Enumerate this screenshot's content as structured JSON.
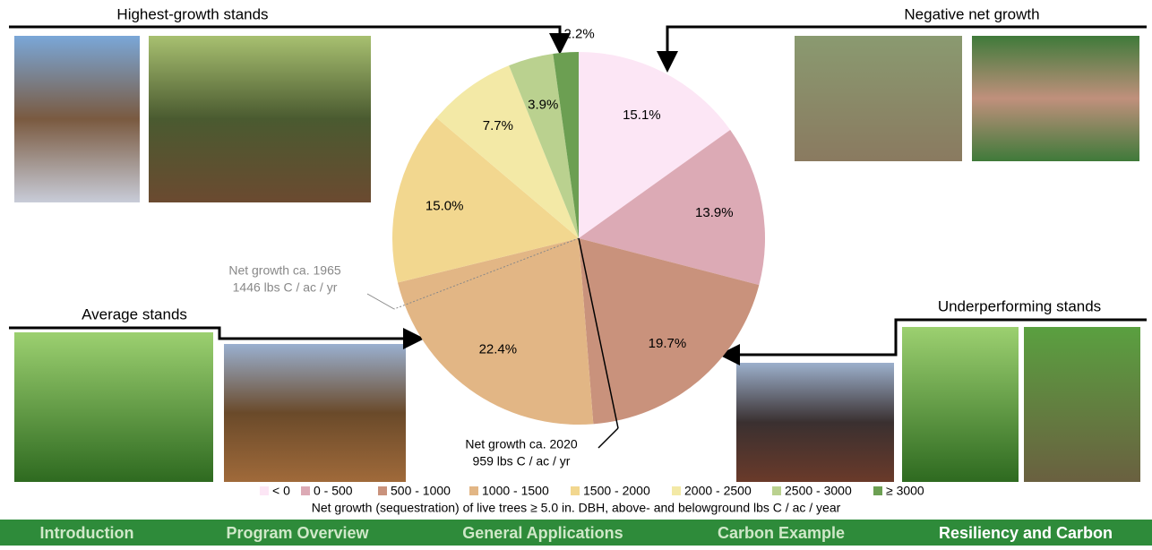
{
  "chart_data": {
    "type": "pie",
    "categories": [
      "< 0",
      "0 - 500",
      "500 - 1000",
      "1000 - 1500",
      "1500 - 2000",
      "2000 - 2500",
      "2500 - 3000",
      "≥ 3000"
    ],
    "values": [
      15.1,
      13.9,
      19.7,
      22.4,
      15.0,
      7.7,
      3.9,
      2.2
    ],
    "value_labels": [
      "15.1%",
      "13.9%",
      "19.7%",
      "22.4%",
      "15.0%",
      "7.7%",
      "3.9%",
      "2.2%"
    ],
    "colors": [
      "#fce6f5",
      "#dcaab5",
      "#c9927c",
      "#e2b685",
      "#f2d78f",
      "#f3e9a6",
      "#bad18f",
      "#6c9f52"
    ],
    "caption": "Net growth (sequestration) of live trees ≥ 5.0 in. DBH, above- and belowground lbs C / ac / year",
    "annotations": [
      {
        "line1": "Net growth ca. 1965",
        "line2": "1446 lbs C / ac / yr"
      },
      {
        "line1": "Net growth ca. 2020",
        "line2": "959 lbs C / ac / yr"
      }
    ]
  },
  "panels": [
    "Highest-growth stands",
    "Negative net growth",
    "Average stands",
    "Underperforming stands"
  ],
  "nav": [
    "Introduction",
    "Program Overview",
    "General Applications",
    "Carbon Example",
    "Resiliency and Carbon"
  ]
}
